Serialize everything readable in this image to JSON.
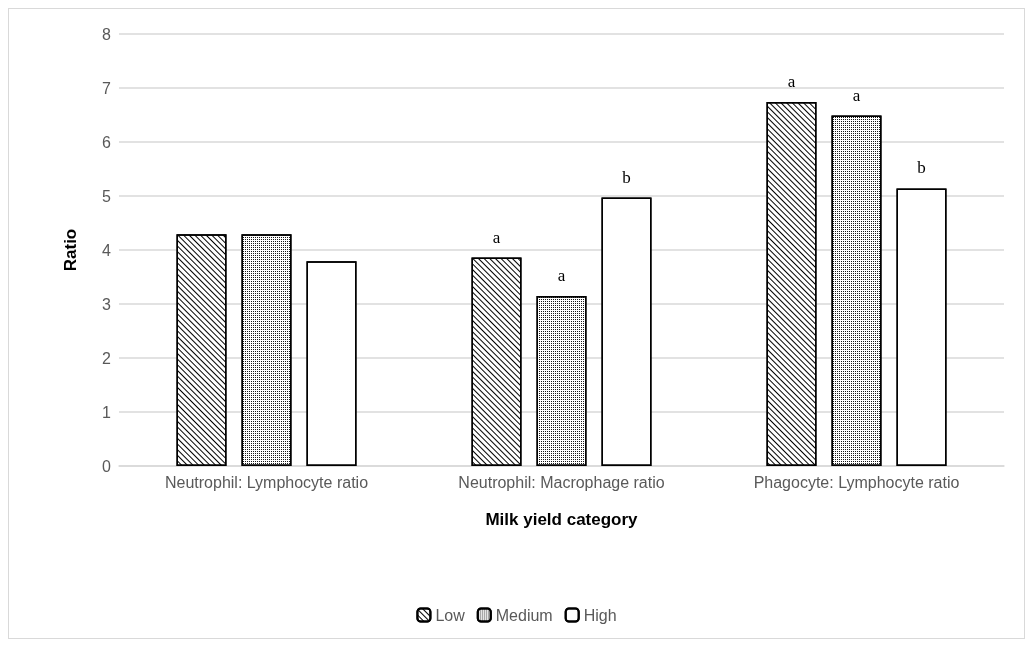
{
  "chart_data": {
    "type": "bar",
    "xlabel": "Milk yield category",
    "ylabel": "Ratio",
    "categories": [
      "Neutrophil: Lymphocyte ratio",
      "Neutrophil: Macrophage ratio",
      "Phagocyte: Lymphocyte ratio"
    ],
    "series": [
      {
        "name": "Low",
        "color": "#ffffff",
        "values": [
          4.29,
          3.86,
          6.74
        ],
        "value_labels": [
          null,
          "a",
          "a"
        ]
      },
      {
        "name": "Medium",
        "color": "#ffffff",
        "values": [
          4.29,
          3.15,
          6.49
        ],
        "value_labels": [
          null,
          "a",
          "a"
        ]
      },
      {
        "name": "High",
        "color": "#ffffff",
        "values": [
          3.79,
          4.97,
          5.14
        ],
        "value_labels": [
          null,
          "b",
          "b"
        ]
      }
    ],
    "ylim": [
      0,
      8
    ],
    "yticks": [
      0,
      1,
      2,
      3,
      4,
      5,
      6,
      7,
      8
    ],
    "grid": "y",
    "legend": "bottom"
  }
}
